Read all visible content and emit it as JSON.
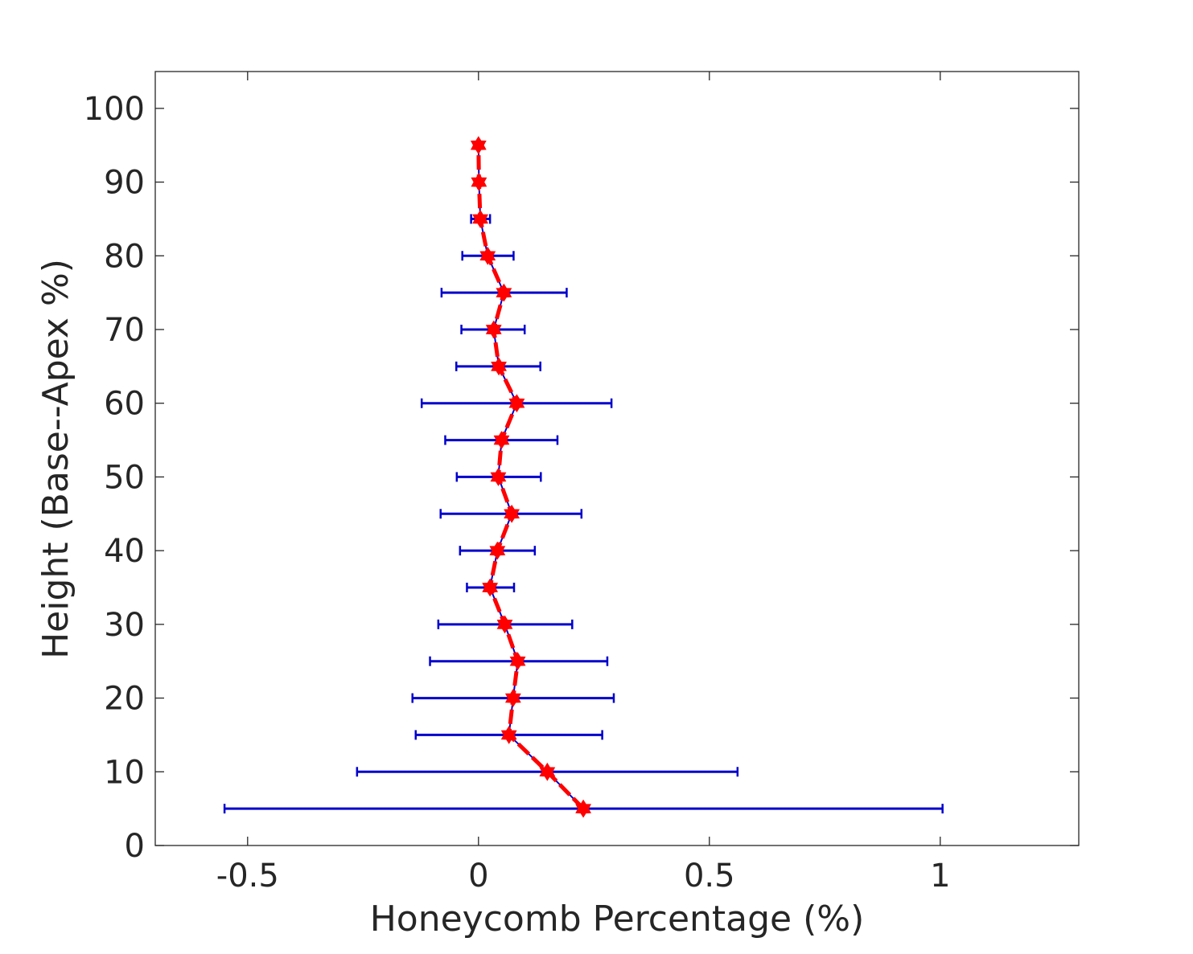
{
  "chart_data": {
    "type": "line",
    "xlabel": "Honeycomb Percentage (%)",
    "ylabel": "Height (Base--Apex %)",
    "xlim": [
      -0.7,
      1.3
    ],
    "ylim": [
      0,
      105
    ],
    "x_ticks": [
      "-0.5",
      "0",
      "0.5",
      "1"
    ],
    "x_tick_values": [
      -0.5,
      0,
      0.5,
      1
    ],
    "y_ticks": [
      "0",
      "10",
      "20",
      "30",
      "40",
      "50",
      "60",
      "70",
      "80",
      "90",
      "100"
    ],
    "y_tick_values": [
      0,
      10,
      20,
      30,
      40,
      50,
      60,
      70,
      80,
      90,
      100
    ],
    "grid": false,
    "box": true,
    "series": [
      {
        "x": [
          0.227,
          0.149,
          0.066,
          0.075,
          0.085,
          0.057,
          0.025,
          0.041,
          0.072,
          0.043,
          0.05,
          0.083,
          0.044,
          0.033,
          0.055,
          0.02,
          0.004,
          0.001,
          0.0
        ],
        "y": [
          5,
          10,
          15,
          20,
          25,
          30,
          35,
          40,
          45,
          50,
          55,
          60,
          65,
          70,
          75,
          80,
          85,
          90,
          95
        ],
        "xerr_low": [
          -0.55,
          -0.263,
          -0.136,
          -0.143,
          -0.105,
          -0.087,
          -0.025,
          -0.04,
          -0.082,
          -0.047,
          -0.072,
          -0.123,
          -0.048,
          -0.037,
          -0.08,
          -0.035,
          -0.016,
          0.0,
          0.0
        ],
        "xerr_high": [
          1.005,
          0.561,
          0.268,
          0.293,
          0.279,
          0.203,
          0.077,
          0.122,
          0.223,
          0.135,
          0.171,
          0.288,
          0.134,
          0.1,
          0.191,
          0.076,
          0.025,
          0.0,
          0.0
        ],
        "line_color": "#ff0000",
        "marker_color": "#ff0000",
        "errorbar_color": "#0000cc"
      }
    ]
  }
}
